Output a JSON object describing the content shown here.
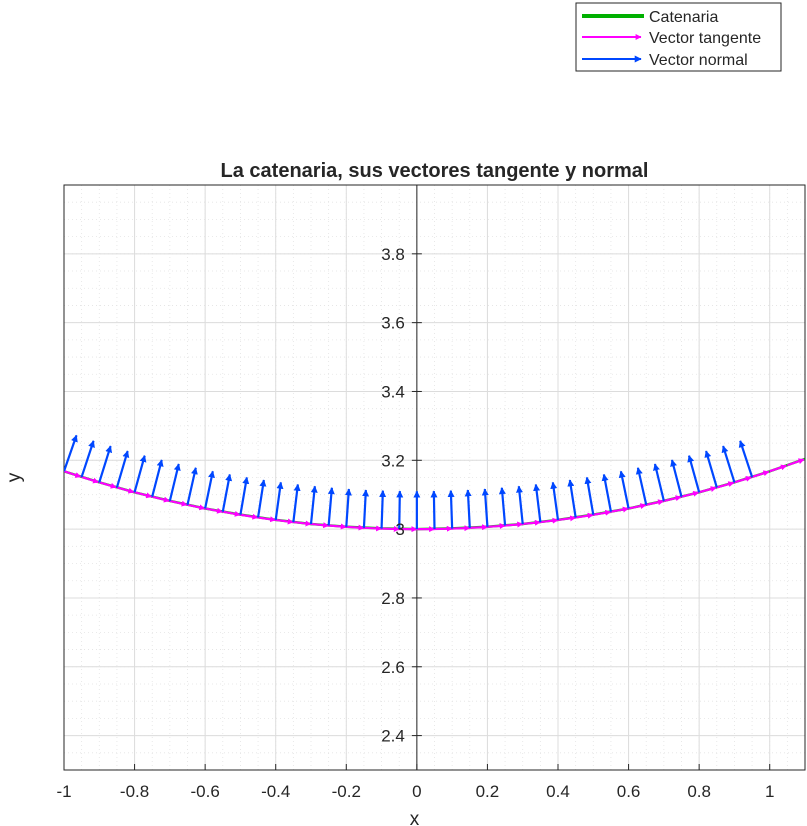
{
  "chart_data": {
    "type": "line",
    "title": "La catenaria, sus vectores tangente y normal",
    "xlabel": "x",
    "ylabel": "y",
    "xlim": [
      -1,
      1.1
    ],
    "ylim": [
      2.3,
      4.0
    ],
    "xticks": [
      -1,
      -0.8,
      -0.6,
      -0.4,
      -0.2,
      0,
      0.2,
      0.4,
      0.6,
      0.8,
      1
    ],
    "xtick_labels": [
      "-1",
      "-0.8",
      "-0.6",
      "-0.4",
      "-0.2",
      "0",
      "0.2",
      "0.4",
      "0.6",
      "0.8",
      "1"
    ],
    "yticks": [
      2.4,
      2.6,
      2.8,
      3,
      3.2,
      3.4,
      3.6,
      3.8
    ],
    "ytick_labels": [
      "2.4",
      "2.6",
      "2.8",
      "3",
      "3.2",
      "3.4",
      "3.6",
      "3.8"
    ],
    "grid": true,
    "minor_grid": true,
    "axis_location": "origin",
    "legend_position": "top-right",
    "series": [
      {
        "name": "Catenaria",
        "kind": "line",
        "color": "#00b000",
        "curve": "y = 3*cosh(x/3)",
        "x": [
          -1,
          -0.9,
          -0.8,
          -0.7,
          -0.6,
          -0.5,
          -0.4,
          -0.3,
          -0.2,
          -0.1,
          0,
          0.1,
          0.2,
          0.3,
          0.4,
          0.5,
          0.6,
          0.7,
          0.8,
          0.9,
          1.0,
          1.1
        ],
        "y": [
          3.168,
          3.136,
          3.107,
          3.082,
          3.06,
          3.042,
          3.027,
          3.015,
          3.007,
          3.002,
          3.0,
          3.002,
          3.007,
          3.015,
          3.027,
          3.042,
          3.06,
          3.082,
          3.107,
          3.136,
          3.168,
          3.204
        ]
      },
      {
        "name": "Vector tangente",
        "kind": "quiver",
        "color": "#ff00ff",
        "base_x_range": [
          -1,
          1.05
        ],
        "base_x_step": 0.05,
        "vector_length": 0.05
      },
      {
        "name": "Vector normal",
        "kind": "quiver",
        "color": "#0047ff",
        "base_x_range": [
          -1,
          0.95
        ],
        "base_x_step": 0.05,
        "vector_length": 0.11
      }
    ]
  }
}
